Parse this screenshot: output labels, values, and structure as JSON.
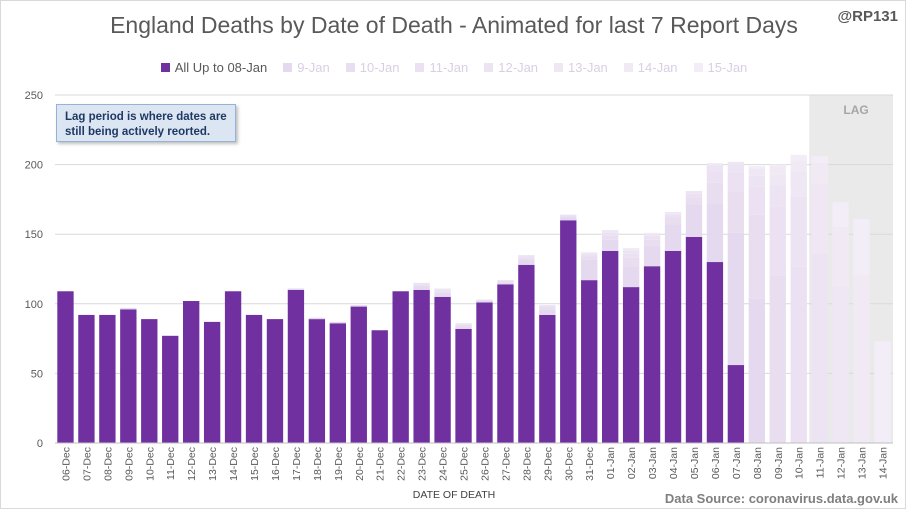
{
  "title": "England Deaths by Date of Death - Animated for last 7 Report Days",
  "handle": "@RP131",
  "note": "Lag period is where dates are still being actively reorted.",
  "source": "Data Source: coronavirus.data.gov.uk",
  "lag_label": "LAG",
  "colors": {
    "primary": "#7030a0",
    "faded": [
      "#e4d9ef",
      "#e8deef",
      "#ebe1f2",
      "#ede4f3",
      "#efe7f4",
      "#f1eaf5",
      "#f3edf7"
    ],
    "lag_shade": "#e6e6e6",
    "grid": "#d9d9d9"
  },
  "chart_data": {
    "type": "bar",
    "stacked": true,
    "title": "England Deaths by Date of Death - Animated for last 7 Report Days",
    "xlabel": "DATE OF DEATH",
    "ylabel": "",
    "ylim": [
      0,
      250
    ],
    "yticks": [
      0,
      50,
      100,
      150,
      200,
      250
    ],
    "grid": true,
    "legend_position": "top",
    "lag_region": [
      "11-Jan",
      "14-Jan"
    ],
    "categories": [
      "06-Dec",
      "07-Dec",
      "08-Dec",
      "09-Dec",
      "10-Dec",
      "11-Dec",
      "12-Dec",
      "13-Dec",
      "14-Dec",
      "15-Dec",
      "16-Dec",
      "17-Dec",
      "18-Dec",
      "19-Dec",
      "20-Dec",
      "21-Dec",
      "22-Dec",
      "23-Dec",
      "24-Dec",
      "25-Dec",
      "26-Dec",
      "27-Dec",
      "28-Dec",
      "29-Dec",
      "30-Dec",
      "31-Dec",
      "01-Jan",
      "02-Jan",
      "03-Jan",
      "04-Jan",
      "05-Jan",
      "06-Jan",
      "07-Jan",
      "08-Jan",
      "09-Jan",
      "10-Jan",
      "11-Jan",
      "12-Jan",
      "13-Jan",
      "14-Jan"
    ],
    "series": [
      {
        "name": "All Up to 08-Jan",
        "values": [
          109,
          92,
          92,
          96,
          89,
          77,
          102,
          87,
          109,
          92,
          89,
          110,
          89,
          86,
          98,
          81,
          109,
          110,
          105,
          82,
          101,
          114,
          128,
          92,
          160,
          117,
          138,
          112,
          127,
          138,
          148,
          130,
          56,
          0,
          0,
          0,
          0,
          0,
          0,
          0
        ]
      },
      {
        "name": "9-Jan",
        "values": [
          0,
          0,
          0,
          1,
          0,
          0,
          0,
          0,
          0,
          0,
          0,
          1,
          1,
          1,
          1,
          0,
          0,
          3,
          3,
          2,
          1,
          1,
          4,
          4,
          2,
          15,
          8,
          15,
          15,
          19,
          23,
          42,
          95,
          104,
          0,
          0,
          0,
          0,
          0,
          0
        ]
      },
      {
        "name": "10-Jan",
        "values": [
          0,
          0,
          0,
          0,
          0,
          0,
          0,
          0,
          0,
          0,
          0,
          0,
          0,
          0,
          0,
          0,
          0,
          1,
          1,
          1,
          1,
          1,
          1,
          2,
          1,
          2,
          3,
          6,
          4,
          5,
          5,
          15,
          30,
          60,
          120,
          0,
          0,
          0,
          0,
          0
        ]
      },
      {
        "name": "11-Jan",
        "values": [
          0,
          0,
          0,
          0,
          0,
          0,
          0,
          0,
          0,
          0,
          0,
          0,
          0,
          0,
          0,
          0,
          0,
          1,
          1,
          1,
          0,
          1,
          1,
          1,
          1,
          1,
          2,
          3,
          2,
          2,
          3,
          8,
          13,
          20,
          50,
          127,
          0,
          0,
          0,
          0
        ]
      },
      {
        "name": "12-Jan",
        "values": [
          0,
          0,
          0,
          0,
          0,
          0,
          0,
          0,
          0,
          0,
          0,
          0,
          0,
          0,
          0,
          0,
          0,
          0,
          1,
          0,
          0,
          0,
          1,
          0,
          0,
          1,
          1,
          2,
          1,
          1,
          2,
          4,
          6,
          8,
          15,
          50,
          136,
          0,
          0,
          0
        ]
      },
      {
        "name": "13-Jan",
        "values": [
          0,
          0,
          0,
          0,
          0,
          0,
          0,
          0,
          0,
          0,
          0,
          0,
          0,
          0,
          0,
          0,
          0,
          0,
          0,
          0,
          0,
          0,
          0,
          0,
          0,
          1,
          1,
          1,
          1,
          1,
          0,
          2,
          2,
          5,
          8,
          18,
          50,
          112,
          0,
          0
        ]
      },
      {
        "name": "14-Jan",
        "values": [
          0,
          0,
          0,
          0,
          0,
          0,
          0,
          0,
          0,
          0,
          0,
          0,
          0,
          0,
          0,
          0,
          0,
          0,
          0,
          0,
          0,
          0,
          0,
          0,
          0,
          0,
          0,
          1,
          1,
          0,
          0,
          0,
          0,
          1,
          6,
          8,
          15,
          43,
          121,
          0
        ]
      },
      {
        "name": "15-Jan",
        "values": [
          0,
          0,
          0,
          0,
          0,
          0,
          0,
          0,
          0,
          0,
          0,
          0,
          0,
          0,
          0,
          0,
          0,
          0,
          0,
          0,
          0,
          0,
          0,
          0,
          0,
          0,
          0,
          0,
          0,
          0,
          0,
          0,
          0,
          1,
          1,
          4,
          5,
          18,
          40,
          73
        ]
      }
    ]
  }
}
